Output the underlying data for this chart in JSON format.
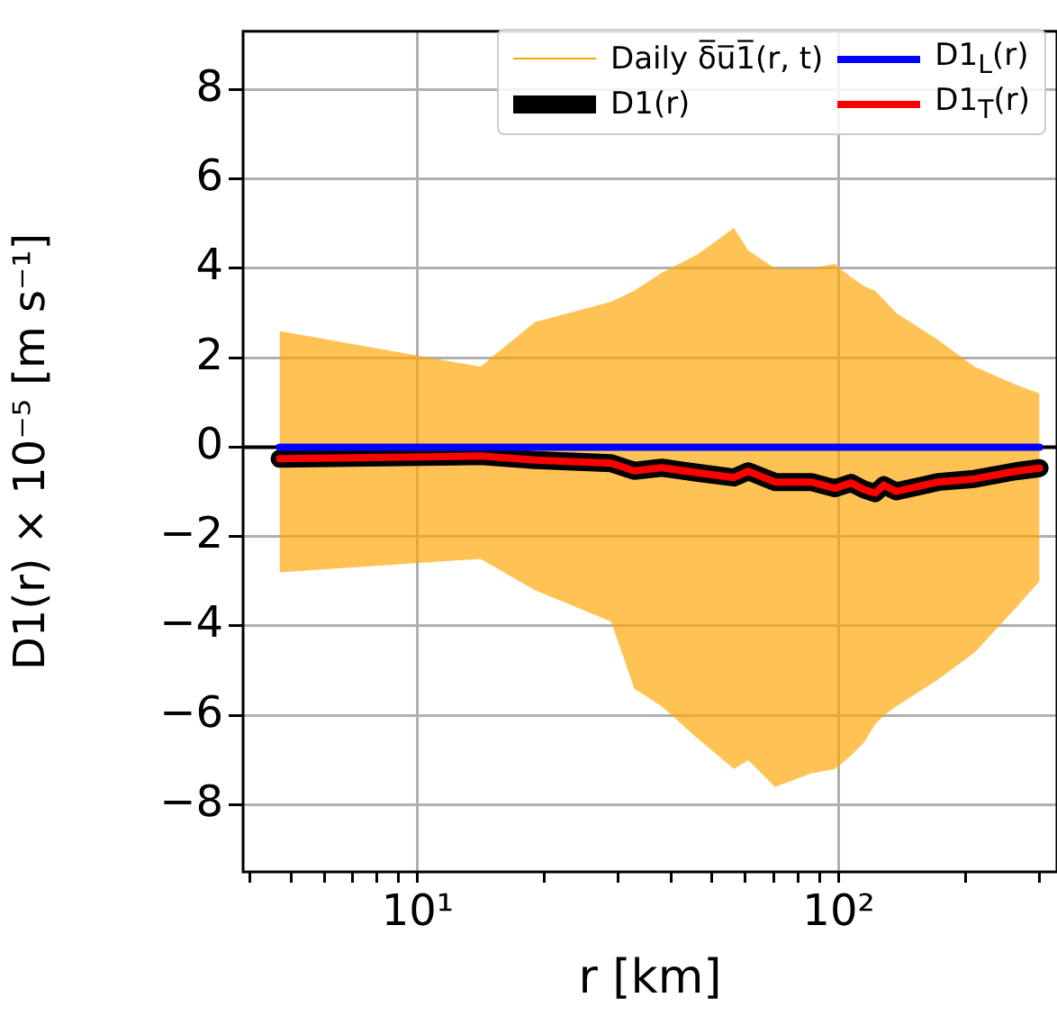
{
  "chart_data": {
    "type": "line",
    "xlabel": "r [km]",
    "ylabel": "D1(r) × 10⁻⁵ [m s⁻¹]",
    "x": [
      4.7,
      14.1,
      19,
      28.8,
      32.7,
      38,
      46,
      56.4,
      61,
      70.6,
      86,
      98,
      107,
      115,
      122,
      128,
      137,
      172,
      210,
      263,
      300
    ],
    "series": [
      {
        "name": "Daily δ̅u̅1̅(r, t)",
        "color": "#ffa500",
        "values": [
          null,
          null,
          null,
          null,
          null,
          null,
          null,
          null,
          null,
          null,
          null,
          null,
          null,
          null,
          null,
          null,
          null,
          null,
          null,
          null,
          null
        ],
        "lower": [
          -2.8,
          -2.5,
          -3.2,
          -3.9,
          -5.4,
          -5.8,
          -6.5,
          -7.2,
          -7.0,
          -7.6,
          -7.3,
          -7.2,
          -6.9,
          -6.6,
          -6.2,
          -6.0,
          -5.8,
          -5.2,
          -4.6,
          -3.6,
          -3.0
        ],
        "upper": [
          2.6,
          1.8,
          2.8,
          3.25,
          3.5,
          3.9,
          4.3,
          4.9,
          4.4,
          4.0,
          4.0,
          4.1,
          3.8,
          3.6,
          3.5,
          3.3,
          3.0,
          2.4,
          1.8,
          1.4,
          1.2
        ]
      },
      {
        "name": "D1(r)",
        "color": "#000000",
        "values": [
          -0.26,
          -0.2,
          -0.29,
          -0.36,
          -0.53,
          -0.46,
          -0.57,
          -0.68,
          -0.54,
          -0.78,
          -0.78,
          -0.92,
          -0.8,
          -0.95,
          -1.03,
          -0.85,
          -0.99,
          -0.78,
          -0.71,
          -0.54,
          -0.47
        ]
      },
      {
        "name": "D1$_{L}$(r)",
        "color": "#0000ff",
        "values": [
          0,
          0,
          0,
          0,
          0,
          0,
          0,
          0,
          0,
          0,
          0,
          0,
          0,
          0,
          0,
          0,
          0,
          0,
          0,
          0,
          0
        ]
      },
      {
        "name": "D1$_{T}$(r)",
        "color": "#ff0000",
        "values": [
          -0.26,
          -0.2,
          -0.29,
          -0.36,
          -0.53,
          -0.46,
          -0.57,
          -0.68,
          -0.54,
          -0.78,
          -0.78,
          -0.92,
          -0.8,
          -0.95,
          -1.03,
          -0.85,
          -0.99,
          -0.78,
          -0.71,
          -0.54,
          -0.47
        ]
      }
    ],
    "log": "x",
    "xlim": [
      3.85,
      330
    ],
    "xticks": [
      {
        "value": 4,
        "label": null
      },
      {
        "value": 5,
        "label": null
      },
      {
        "value": 6,
        "label": null
      },
      {
        "value": 7,
        "label": null
      },
      {
        "value": 8,
        "label": null
      },
      {
        "value": 9,
        "label": null
      },
      {
        "value": 10,
        "label": "10¹"
      },
      {
        "value": 20,
        "label": null
      },
      {
        "value": 30,
        "label": null
      },
      {
        "value": 40,
        "label": null
      },
      {
        "value": 50,
        "label": null
      },
      {
        "value": 60,
        "label": null
      },
      {
        "value": 70,
        "label": null
      },
      {
        "value": 80,
        "label": null
      },
      {
        "value": 90,
        "label": null
      },
      {
        "value": 100,
        "label": "10²"
      },
      {
        "value": 200,
        "label": null
      },
      {
        "value": 300,
        "label": null
      }
    ],
    "ylim": [
      -9.5,
      9.3
    ],
    "yticks": [
      -8,
      -6,
      -4,
      -2,
      0,
      2,
      4,
      6,
      8
    ],
    "ref_lines": [
      {
        "axis": "y",
        "value": 0,
        "color": "#000000"
      }
    ],
    "grid": true,
    "legend": "top right",
    "line_style": "solid",
    "marker": "none"
  }
}
